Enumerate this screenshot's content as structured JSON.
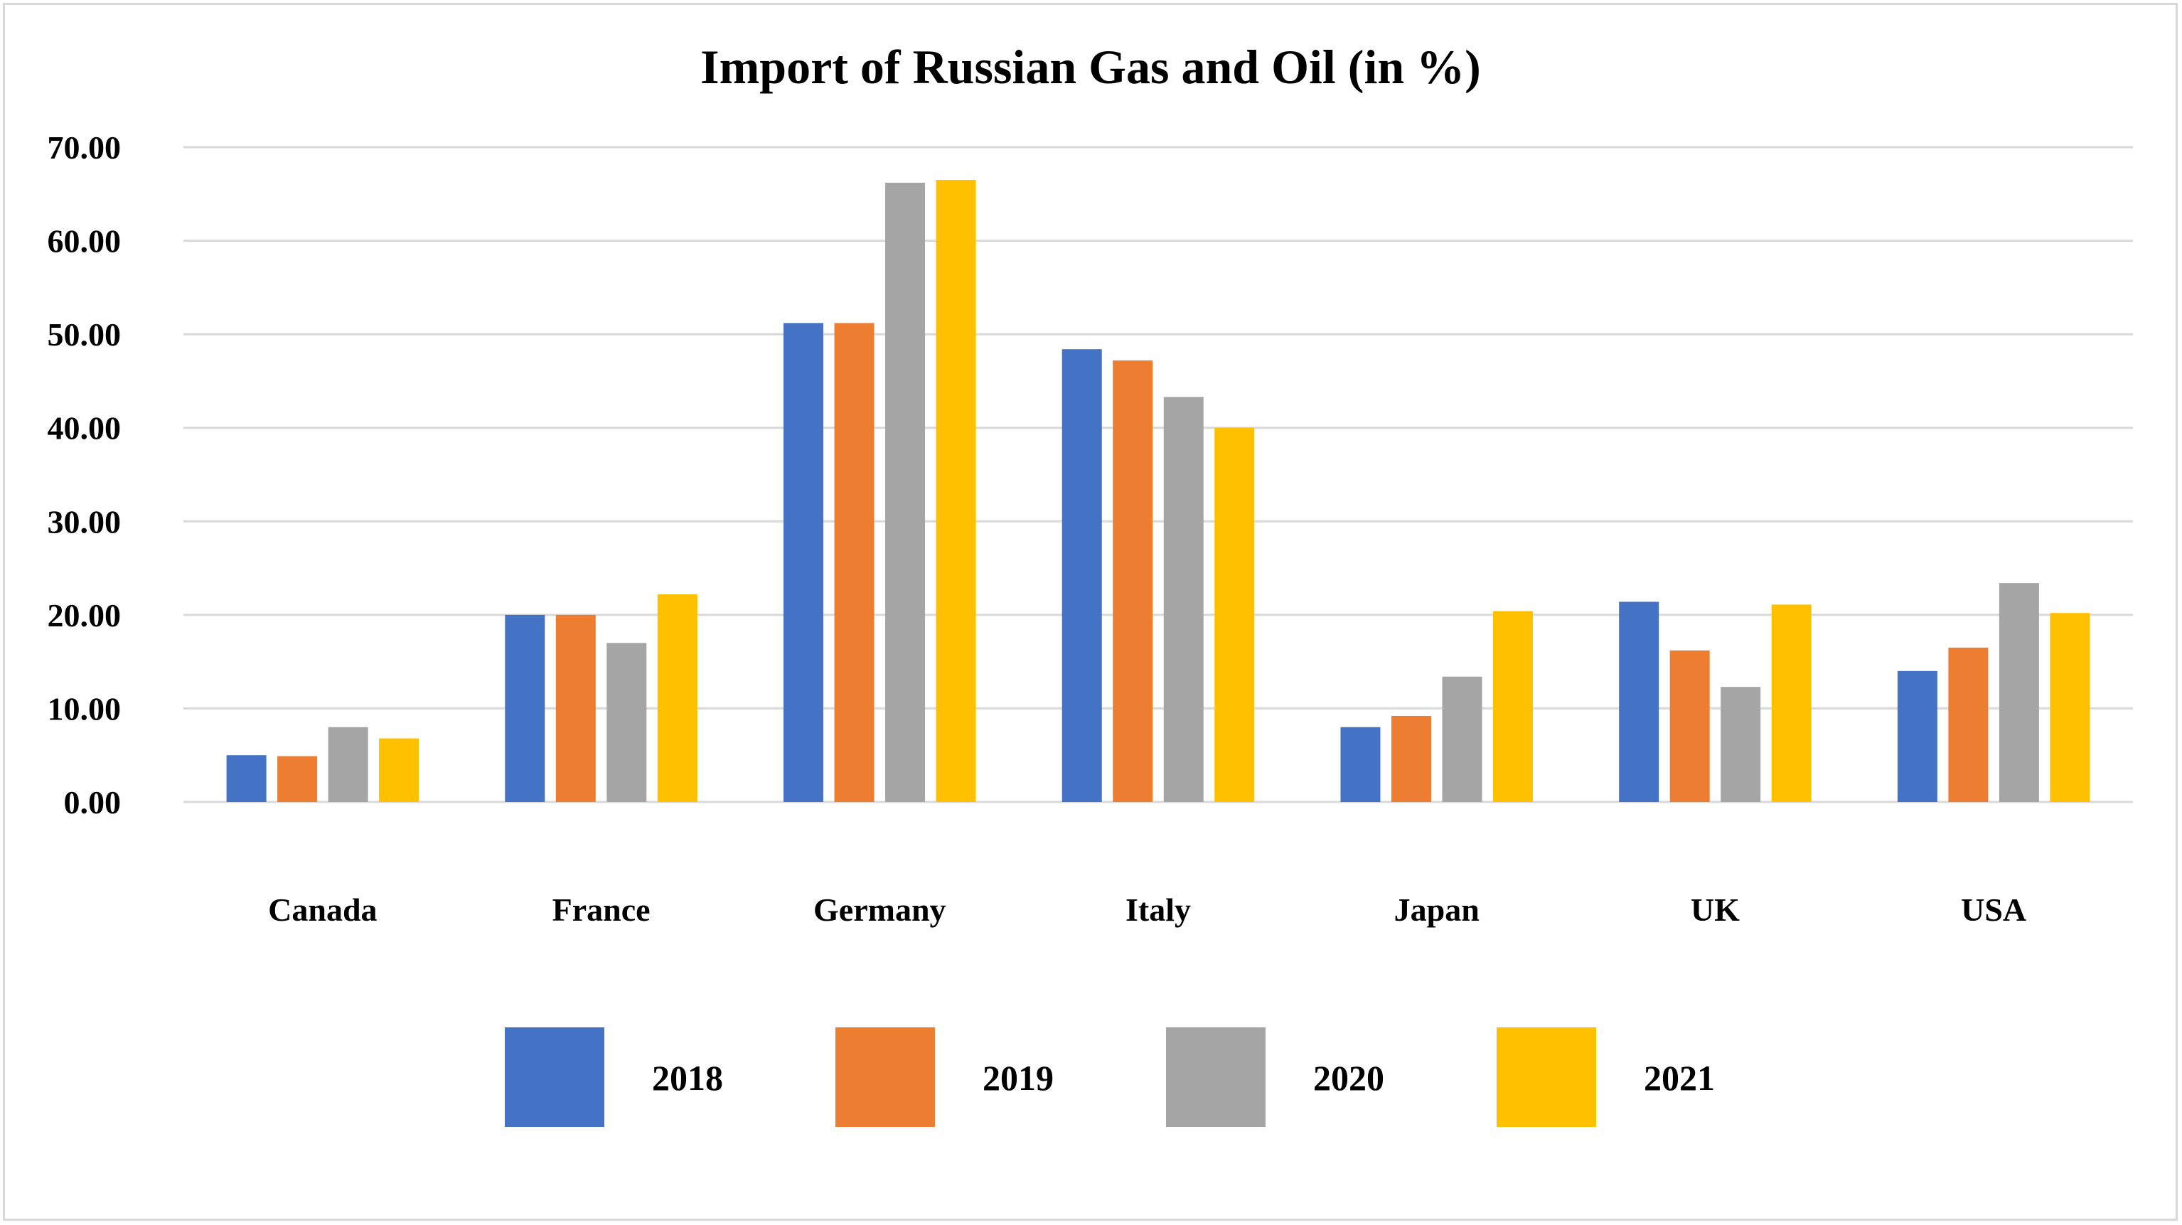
{
  "chart_data": {
    "type": "bar",
    "title": "Import of Russian Gas and Oil (in %)",
    "xlabel": "",
    "ylabel": "",
    "ylim": [
      0,
      70
    ],
    "ytick_step": 10,
    "ytick_decimals": 2,
    "grid": true,
    "legend_position": "bottom",
    "categories": [
      "Canada",
      "France",
      "Germany",
      "Italy",
      "Japan",
      "UK",
      "USA"
    ],
    "series": [
      {
        "name": "2018",
        "color": "#4472C4",
        "values": [
          5.0,
          20.0,
          51.2,
          48.4,
          8.0,
          21.4,
          14.0
        ]
      },
      {
        "name": "2019",
        "color": "#ED7D31",
        "values": [
          4.9,
          20.0,
          51.2,
          47.2,
          9.2,
          16.2,
          16.5
        ]
      },
      {
        "name": "2020",
        "color": "#A5A5A5",
        "values": [
          8.0,
          17.0,
          66.2,
          43.3,
          13.4,
          12.3,
          23.4
        ]
      },
      {
        "name": "2021",
        "color": "#FFC000",
        "values": [
          6.8,
          22.2,
          66.5,
          40.0,
          20.4,
          21.1,
          20.2
        ]
      }
    ]
  }
}
